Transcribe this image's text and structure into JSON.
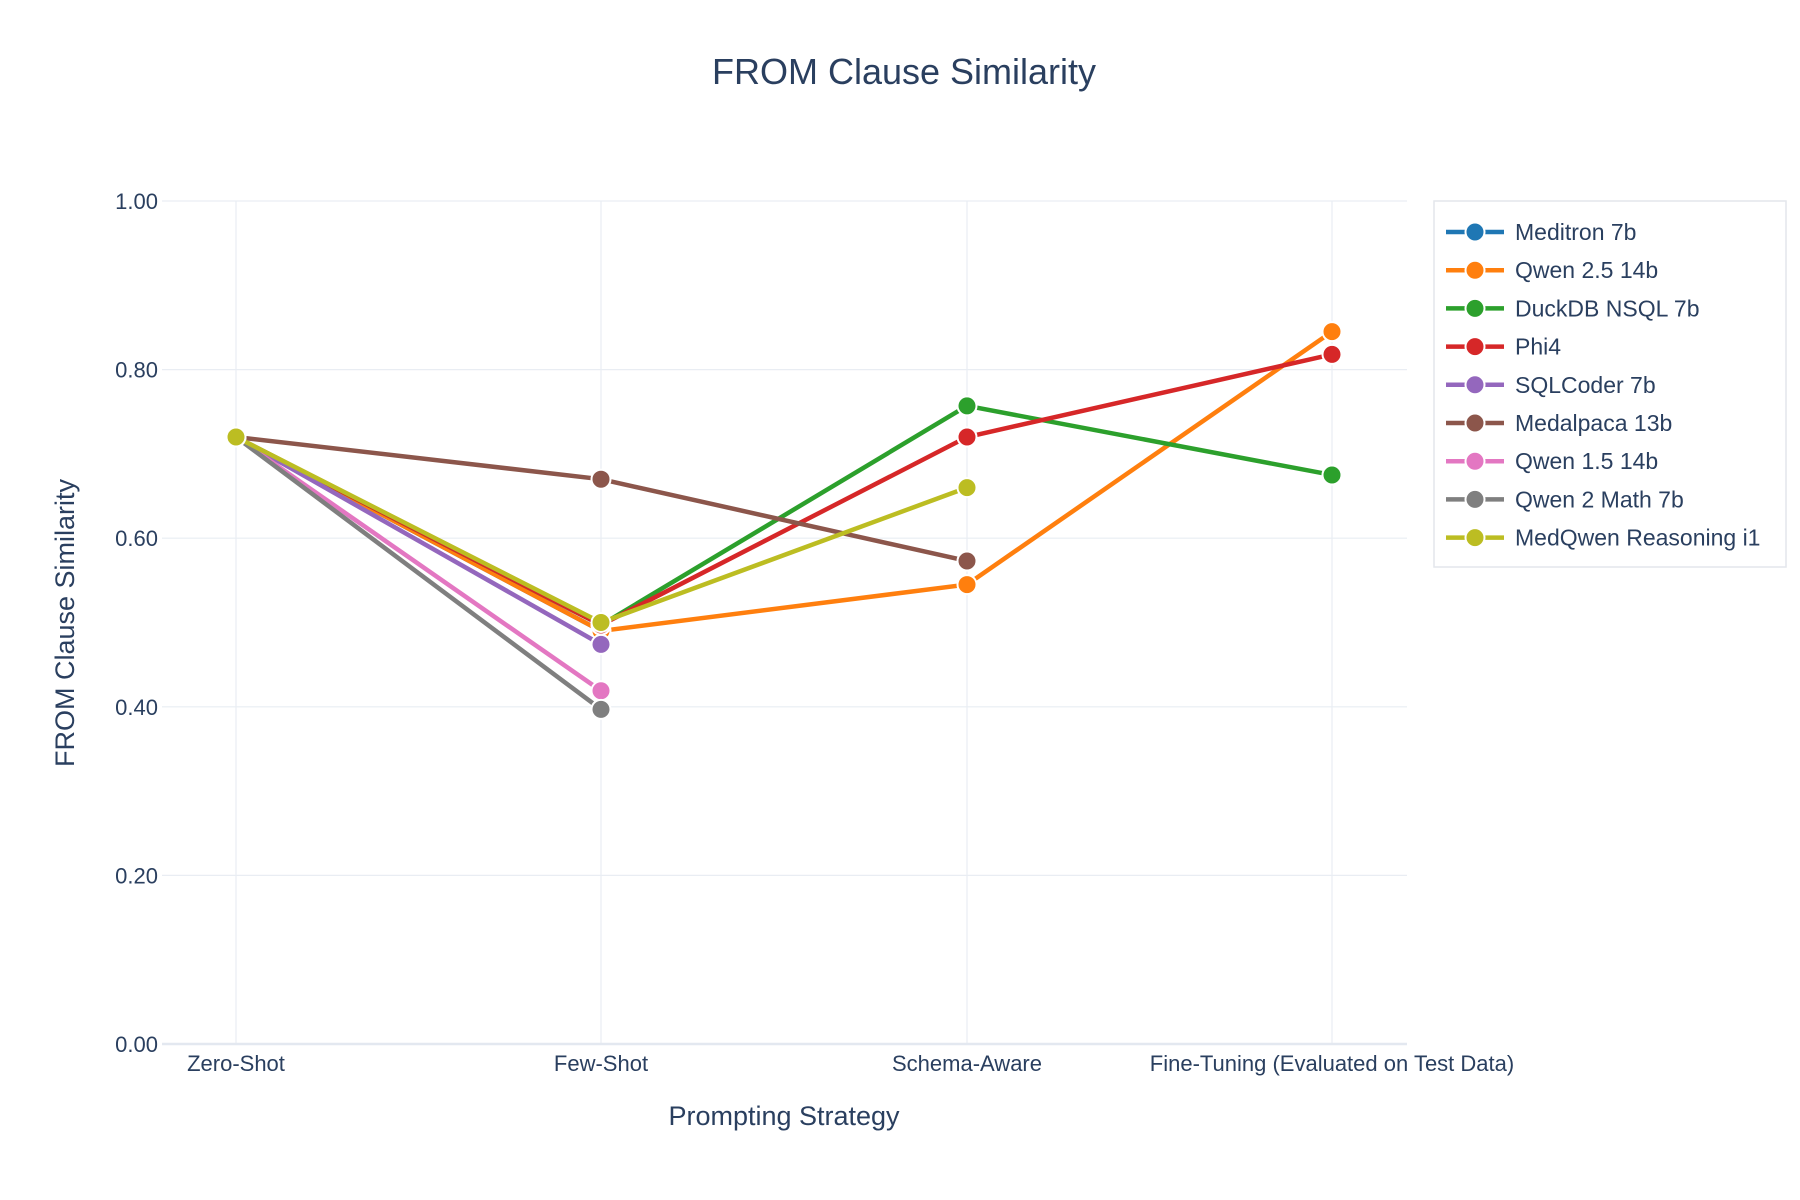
{
  "chart_data": {
    "type": "line",
    "title": "FROM Clause Similarity",
    "xlabel": "Prompting Strategy",
    "ylabel": "FROM Clause Similarity",
    "categories": [
      "Zero-Shot",
      "Few-Shot",
      "Schema-Aware",
      "Fine-Tuning (Evaluated on Test Data)"
    ],
    "ylim": [
      0,
      1
    ],
    "yticks": [
      0,
      0.2,
      0.4,
      0.6,
      0.8,
      1.0
    ],
    "ytick_labels": [
      "0.00",
      "0.20",
      "0.40",
      "0.60",
      "0.80",
      "1.00"
    ],
    "grid": true,
    "legend_position": "top-right",
    "series": [
      {
        "name": "Meditron 7b",
        "color": "#1f77b4",
        "values": [
          0.72,
          0.49,
          null,
          null
        ]
      },
      {
        "name": "Qwen 2.5 14b",
        "color": "#ff7f0e",
        "values": [
          0.72,
          0.49,
          0.545,
          0.845
        ]
      },
      {
        "name": "DuckDB NSQL 7b",
        "color": "#2ca02c",
        "values": [
          0.72,
          0.497,
          0.757,
          0.675
        ]
      },
      {
        "name": "Phi4",
        "color": "#d62728",
        "values": [
          0.72,
          0.497,
          0.72,
          0.818
        ]
      },
      {
        "name": "SQLCoder 7b",
        "color": "#9467bd",
        "values": [
          0.72,
          0.474,
          null,
          null
        ]
      },
      {
        "name": "Medalpaca 13b",
        "color": "#8c564b",
        "values": [
          0.72,
          0.67,
          0.573,
          null
        ]
      },
      {
        "name": "Qwen 1.5 14b",
        "color": "#e377c2",
        "values": [
          0.72,
          0.419,
          null,
          null
        ]
      },
      {
        "name": "Qwen 2 Math 7b",
        "color": "#7f7f7f",
        "values": [
          0.72,
          0.397,
          null,
          null
        ]
      },
      {
        "name": "MedQwen Reasoning i1",
        "color": "#bcbd22",
        "values": [
          0.72,
          0.5,
          0.66,
          null
        ]
      }
    ]
  }
}
